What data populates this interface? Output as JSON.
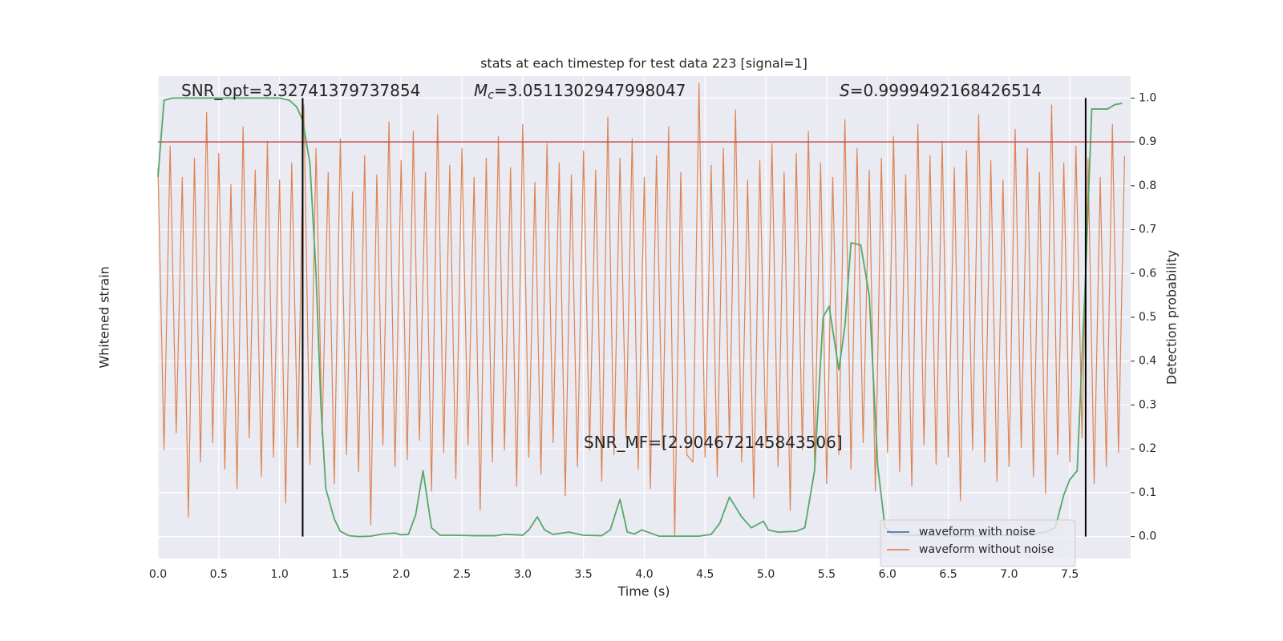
{
  "chart_data": {
    "type": "line",
    "title": "stats at each timestep for test data 223 [signal=1]",
    "xlabel": "Time (s)",
    "ylabel": "Whitened strain",
    "y2label": "Detection probability",
    "xlim": [
      0,
      8.0
    ],
    "ylim": [
      -1,
      1
    ],
    "y2lim": [
      -0.05,
      1.05
    ],
    "xticks": [
      {
        "value": 0,
        "label": "0.0"
      },
      {
        "value": 0.5,
        "label": "0.5"
      },
      {
        "value": 1,
        "label": "1.0"
      },
      {
        "value": 1.5,
        "label": "1.5"
      },
      {
        "value": 2,
        "label": "2.0"
      },
      {
        "value": 2.5,
        "label": "2.5"
      },
      {
        "value": 3,
        "label": "3.0"
      },
      {
        "value": 3.5,
        "label": "3.5"
      },
      {
        "value": 4,
        "label": "4.0"
      },
      {
        "value": 4.5,
        "label": "4.5"
      },
      {
        "value": 5,
        "label": "5.0"
      },
      {
        "value": 5.5,
        "label": "5.5"
      },
      {
        "value": 6,
        "label": "6.0"
      },
      {
        "value": 6.5,
        "label": "6.5"
      },
      {
        "value": 7,
        "label": "7.0"
      },
      {
        "value": 7.5,
        "label": "7.5"
      }
    ],
    "y2ticks": [
      {
        "value": 0,
        "label": "0.0"
      },
      0.1,
      0.2,
      0.3,
      0.4,
      0.5,
      0.6,
      0.7,
      0.8,
      0.9,
      {
        "value": 1,
        "label": "1.0"
      }
    ],
    "grid": true,
    "legend": "lower right",
    "series": [
      {
        "name": "waveform with noise",
        "color": "#4c72b0",
        "values": []
      },
      {
        "name": "waveform without noise",
        "color": "#dd8452",
        "x": [
          0,
          0.05,
          0.1,
          0.15,
          0.2,
          0.25,
          0.3,
          0.35,
          0.4,
          0.45,
          0.5,
          0.55,
          0.6,
          0.65,
          0.7,
          0.75,
          0.8,
          0.85,
          0.9,
          0.95,
          1,
          1.05,
          1.1,
          1.15,
          1.2,
          1.25,
          1.3,
          1.35,
          1.4,
          1.45,
          1.5,
          1.55,
          1.6,
          1.65,
          1.7,
          1.75,
          1.8,
          1.85,
          1.9,
          1.95,
          2,
          2.05,
          2.1,
          2.15,
          2.2,
          2.25,
          2.3,
          2.35,
          2.4,
          2.45,
          2.5,
          2.55,
          2.6,
          2.65,
          2.7,
          2.75,
          2.8,
          2.85,
          2.9,
          2.95,
          3,
          3.05,
          3.1,
          3.15,
          3.2,
          3.25,
          3.3,
          3.35,
          3.4,
          3.45,
          3.5,
          3.55,
          3.6,
          3.65,
          3.7,
          3.75,
          3.8,
          3.85,
          3.9,
          3.95,
          4,
          4.05,
          4.1,
          4.15,
          4.2,
          4.25,
          4.3,
          4.35,
          4.4,
          4.45,
          4.5,
          4.55,
          4.6,
          4.65,
          4.7,
          4.75,
          4.8,
          4.85,
          4.9,
          4.95,
          5,
          5.05,
          5.1,
          5.15,
          5.2,
          5.25,
          5.3,
          5.35,
          5.4,
          5.45,
          5.5,
          5.55,
          5.6,
          5.65,
          5.7,
          5.75,
          5.8,
          5.85,
          5.9,
          5.95,
          6,
          6.05,
          6.1,
          6.15,
          6.2,
          6.25,
          6.3,
          6.35,
          6.4,
          6.45,
          6.5,
          6.55,
          6.6,
          6.65,
          6.7,
          6.75,
          6.8,
          6.85,
          6.9,
          6.95,
          7,
          7.05,
          7.1,
          7.15,
          7.2,
          7.25,
          7.3,
          7.35,
          7.4,
          7.45,
          7.5,
          7.55,
          7.6,
          7.65,
          7.7,
          7.75,
          7.8,
          7.85,
          7.9,
          7.95
        ],
        "values": [
          0.62,
          -0.55,
          0.71,
          -0.48,
          0.58,
          -0.83,
          0.66,
          -0.6,
          0.85,
          -0.52,
          0.68,
          -0.63,
          0.55,
          -0.71,
          0.79,
          -0.5,
          0.61,
          -0.66,
          0.73,
          -0.58,
          0.57,
          -0.77,
          0.64,
          -0.54,
          0.88,
          -0.61,
          0.7,
          -0.49,
          0.6,
          -0.69,
          0.74,
          -0.57,
          0.52,
          -0.64,
          0.67,
          -0.86,
          0.59,
          -0.53,
          0.81,
          -0.62,
          0.65,
          -0.59,
          0.77,
          -0.51,
          0.6,
          -0.72,
          0.84,
          -0.56,
          0.63,
          -0.67,
          0.7,
          -0.53,
          0.58,
          -0.8,
          0.66,
          -0.6,
          0.75,
          -0.55,
          0.62,
          -0.7,
          0.8,
          -0.58,
          0.56,
          -0.65,
          0.72,
          -0.52,
          0.64,
          -0.74,
          0.59,
          -0.62,
          0.69,
          -0.55,
          0.61,
          -0.68,
          0.83,
          -0.57,
          0.66,
          -0.5,
          0.74,
          -0.63,
          0.58,
          -0.71,
          0.67,
          -0.54,
          0.79,
          -0.91,
          0.6,
          -0.57,
          -0.6,
          0.97,
          -0.58,
          0.63,
          -0.66,
          0.7,
          -0.52,
          0.86,
          -0.6,
          0.57,
          -0.75,
          0.65,
          -0.54,
          0.72,
          -0.62,
          0.6,
          -0.8,
          0.68,
          -0.55,
          0.77,
          -0.6,
          0.64,
          -0.69,
          0.58,
          -0.57,
          0.82,
          -0.63,
          0.7,
          -0.52,
          0.61,
          -0.72,
          0.66,
          -0.56,
          0.75,
          -0.64,
          0.59,
          -0.7,
          0.8,
          -0.53,
          0.67,
          -0.61,
          0.73,
          -0.58,
          0.62,
          -0.76,
          0.69,
          -0.55,
          0.84,
          -0.6,
          0.65,
          -0.68,
          0.57,
          -0.62,
          0.78,
          -0.54,
          0.7,
          -0.66,
          0.6,
          -0.73,
          0.88,
          -0.57,
          0.64,
          -0.6,
          0.71,
          -0.5,
          0.66,
          -0.69,
          0.58,
          -0.62,
          0.8,
          -0.56,
          0.67
        ]
      },
      {
        "color": "#55a868",
        "axis": "y2",
        "x": [
          0,
          0.05,
          0.12,
          1.0,
          1.08,
          1.14,
          1.19,
          1.25,
          1.3,
          1.34,
          1.38,
          1.45,
          1.5,
          1.57,
          1.65,
          1.75,
          1.85,
          1.95,
          2.0,
          2.06,
          2.12,
          2.18,
          2.25,
          2.32,
          2.45,
          2.6,
          2.78,
          2.85,
          2.95,
          3.0,
          3.05,
          3.12,
          3.18,
          3.25,
          3.38,
          3.5,
          3.65,
          3.72,
          3.8,
          3.86,
          3.92,
          3.98,
          4.12,
          4.25,
          4.45,
          4.55,
          4.62,
          4.7,
          4.8,
          4.88,
          4.98,
          5.02,
          5.1,
          5.25,
          5.32,
          5.4,
          5.47,
          5.52,
          5.6,
          5.65,
          5.7,
          5.78,
          5.85,
          5.92,
          5.98,
          6.05,
          6.2,
          6.5,
          6.8,
          7.1,
          7.3,
          7.38,
          7.45,
          7.5,
          7.56,
          7.63,
          7.68,
          7.81,
          7.87,
          7.93
        ],
        "values": [
          0.82,
          0.995,
          1.0,
          1.0,
          0.995,
          0.98,
          0.95,
          0.85,
          0.6,
          0.3,
          0.11,
          0.04,
          0.012,
          0.002,
          0,
          0.001,
          0.006,
          0.008,
          0.004,
          0.005,
          0.05,
          0.15,
          0.02,
          0.003,
          0.003,
          0.002,
          0.002,
          0.005,
          0.004,
          0.003,
          0.015,
          0.045,
          0.015,
          0.005,
          0.01,
          0.003,
          0.002,
          0.015,
          0.085,
          0.01,
          0.006,
          0.015,
          0.001,
          0.001,
          0.001,
          0.005,
          0.03,
          0.09,
          0.045,
          0.02,
          0.035,
          0.015,
          0.01,
          0.012,
          0.02,
          0.15,
          0.5,
          0.525,
          0.38,
          0.48,
          0.67,
          0.665,
          0.55,
          0.16,
          0.02,
          0.005,
          0.003,
          0.002,
          0.002,
          0.003,
          0.01,
          0.02,
          0.095,
          0.13,
          0.15,
          0.6,
          0.975,
          0.975,
          0.985,
          0.988
        ]
      }
    ],
    "hlines": [
      {
        "y": 0.9,
        "color": "#c44e52",
        "axis": "y2"
      }
    ],
    "vlines": [
      {
        "x": 1.19,
        "ymin": 0,
        "ymax": 1,
        "color": "#000000",
        "axis": "y2"
      },
      {
        "x": 7.63,
        "ymin": 0,
        "ymax": 1,
        "color": "#000000",
        "axis": "y2"
      }
    ],
    "annotations": [
      {
        "text": "SNR_opt=3.32741379737854"
      },
      {
        "symbol": "M",
        "subscript": "c",
        "text": "=3.0511302947998047"
      },
      {
        "symbol": "S",
        "text": "=0.9999492168426514"
      },
      {
        "text": "SNR_MF=[2.904672145843506]"
      }
    ]
  }
}
